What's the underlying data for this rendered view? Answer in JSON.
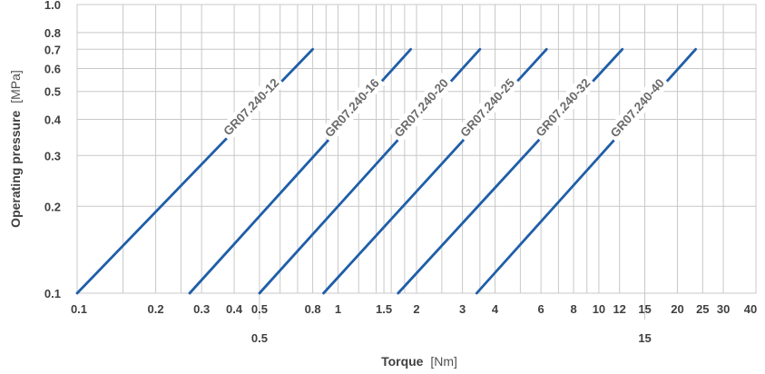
{
  "chart_data": {
    "type": "line",
    "x_axis": {
      "label_bold": "Torque",
      "label_unit": "[Nm]",
      "scale": "log",
      "lim": [
        0.1,
        40
      ],
      "tick_labels": [
        "0.1",
        "0.2",
        "0.3",
        "0.4",
        "0.5",
        "0.8",
        "1",
        "1.5",
        "2",
        "3",
        "4",
        "6",
        "8",
        "10",
        "12",
        "15",
        "20",
        "25",
        "30",
        "40"
      ],
      "lower_row_labels": [
        "0.5",
        "15"
      ]
    },
    "y_axis": {
      "label_bold": "Operating pressure",
      "label_unit": "[MPa]",
      "scale": "log",
      "lim": [
        0.1,
        1.0
      ],
      "tick_labels": [
        "0.1",
        "0.2",
        "0.3",
        "0.4",
        "0.5",
        "0.6",
        "0.7",
        "0.8",
        "1.0"
      ]
    },
    "grid": true,
    "series": [
      {
        "name": "GR07.240-12",
        "x": [
          0.1,
          0.8
        ],
        "y": [
          0.1,
          0.7
        ]
      },
      {
        "name": "GR07.240-16",
        "x": [
          0.27,
          1.9
        ],
        "y": [
          0.1,
          0.7
        ]
      },
      {
        "name": "GR07.240-20",
        "x": [
          0.5,
          3.5
        ],
        "y": [
          0.1,
          0.7
        ]
      },
      {
        "name": "GR07.240-25",
        "x": [
          0.88,
          6.3
        ],
        "y": [
          0.1,
          0.7
        ]
      },
      {
        "name": "GR07.240-32",
        "x": [
          1.7,
          12.3
        ],
        "y": [
          0.1,
          0.7
        ]
      },
      {
        "name": "GR07.240-40",
        "x": [
          3.4,
          23.5
        ],
        "y": [
          0.1,
          0.7
        ]
      }
    ],
    "colors": {
      "series": "#1f5ea8",
      "grid": "#c8c8c8",
      "text": "#404040"
    }
  }
}
